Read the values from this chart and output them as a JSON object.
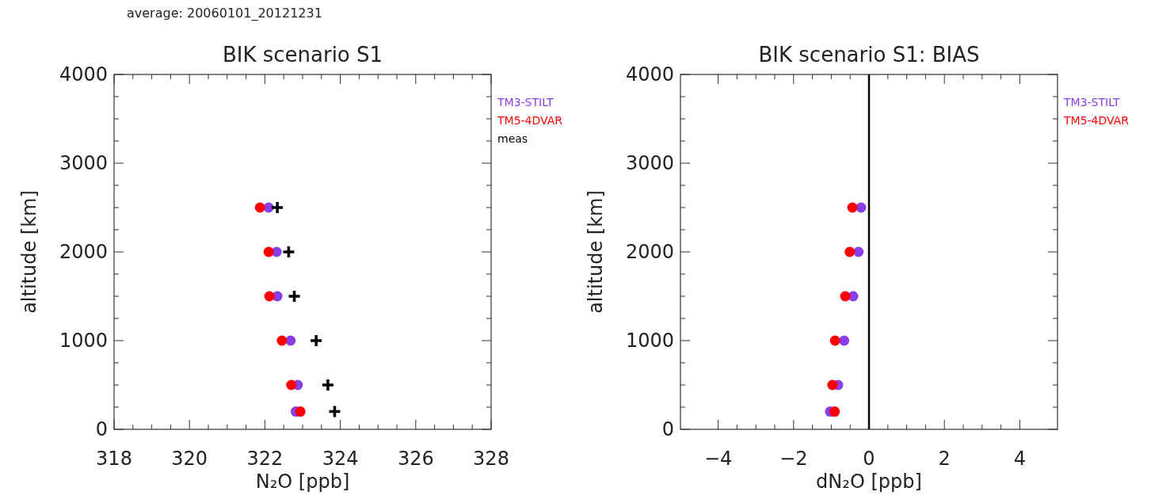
{
  "chart_data": [
    {
      "type": "scatter",
      "title": "BIK scenario S1",
      "xlabel": "N₂O [ppb]",
      "ylabel": "altitude [km]",
      "annotations": [
        "average: 20060101_20121231"
      ],
      "xlim": [
        318,
        328
      ],
      "xticks": [
        318,
        320,
        322,
        324,
        326,
        328
      ],
      "ylim": [
        0,
        4000
      ],
      "yticks": [
        0,
        1000,
        2000,
        3000,
        4000
      ],
      "grid": false,
      "legend": "top right",
      "series": [
        {
          "name": "TM3-STILT",
          "color": "#8a3ee8",
          "marker": "circle",
          "x": [
            322.1,
            322.31,
            322.33,
            322.68,
            322.87,
            322.82
          ],
          "values": [
            2500,
            2000,
            1500,
            1000,
            500,
            200
          ]
        },
        {
          "name": "TM5-4DVAR",
          "color": "#ff0000",
          "marker": "circle",
          "x": [
            321.87,
            322.1,
            322.12,
            322.45,
            322.7,
            322.94
          ],
          "values": [
            2500,
            2000,
            1500,
            1000,
            500,
            200
          ]
        },
        {
          "name": "meas",
          "color": "#000000",
          "marker": "cross",
          "x": [
            322.33,
            322.63,
            322.78,
            323.36,
            323.67,
            323.85
          ],
          "values": [
            2500,
            2000,
            1500,
            1000,
            500,
            200
          ]
        }
      ]
    },
    {
      "type": "scatter",
      "title": "BIK scenario S1: BIAS",
      "xlabel": "dN₂O [ppb]",
      "ylabel": "altitude [km]",
      "xlim": [
        -5,
        5
      ],
      "xticks": [
        {
          "value": -4,
          "label": "−4"
        },
        {
          "value": -2,
          "label": "−2"
        },
        0,
        2,
        4
      ],
      "ylim": [
        0,
        4000
      ],
      "yticks": [
        0,
        1000,
        2000,
        3000,
        4000
      ],
      "grid": false,
      "legend": "top right",
      "ref_lines": [
        {
          "axis": "x",
          "value": 0,
          "color": "#000000"
        }
      ],
      "series": [
        {
          "name": "TM3-STILT",
          "color": "#8a3ee8",
          "marker": "circle",
          "x": [
            -0.21,
            -0.28,
            -0.42,
            -0.66,
            -0.82,
            -1.03
          ],
          "values": [
            2500,
            2000,
            1500,
            1000,
            500,
            200
          ]
        },
        {
          "name": "TM5-4DVAR",
          "color": "#ff0000",
          "marker": "circle",
          "x": [
            -0.44,
            -0.51,
            -0.63,
            -0.9,
            -0.97,
            -0.91
          ],
          "values": [
            2500,
            2000,
            1500,
            1000,
            500,
            200
          ]
        }
      ]
    }
  ]
}
